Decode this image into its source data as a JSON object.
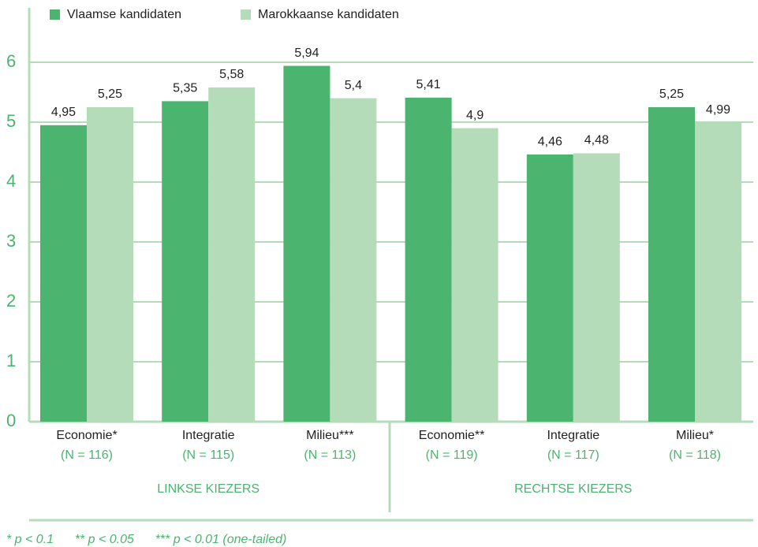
{
  "chart_data": {
    "type": "bar",
    "categories": [
      "Economie*",
      "Integratie",
      "Milieu***",
      "Economie**",
      "Integratie",
      "Milieu*"
    ],
    "sample_sizes": [
      "(N = 116)",
      "(N = 115)",
      "(N = 113)",
      "(N = 119)",
      "(N = 117)",
      "(N = 118)"
    ],
    "groups": [
      "LINKSE KIEZERS",
      "RECHTSE KIEZERS"
    ],
    "series": [
      {
        "name": "Vlaamse kandidaten",
        "color": "#4bb46e",
        "values": [
          4.95,
          5.35,
          5.94,
          5.41,
          4.46,
          5.25
        ],
        "value_labels": [
          "4,95",
          "5,35",
          "5,94",
          "5,41",
          "4,46",
          "5,25"
        ]
      },
      {
        "name": "Marokkaanse kandidaten",
        "color": "#b5dcb9",
        "values": [
          5.25,
          5.58,
          5.4,
          4.9,
          4.48,
          4.99
        ],
        "value_labels": [
          "5,25",
          "5,58",
          "5,4",
          "4,9",
          "4,48",
          "4,99"
        ]
      }
    ],
    "ylim": [
      0,
      7
    ],
    "yticks": [
      0,
      1,
      2,
      3,
      4,
      5,
      6
    ],
    "grid": true,
    "legend": "top",
    "footnote": "* p < 0.1      ** p < 0.05      *** p < 0.01 (one-tailed)"
  }
}
